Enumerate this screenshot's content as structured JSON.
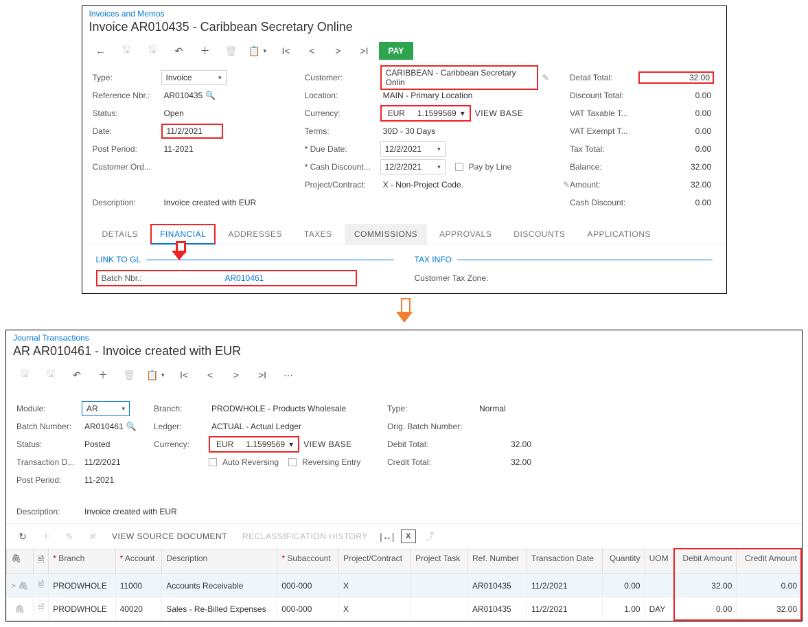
{
  "highlight_color": "#ee2222",
  "arrow_color": "#f08030",
  "accent_color": "#0078d4",
  "pay_button_bg": "#2ea44f",
  "invoice": {
    "breadcrumb": "Invoices and Memos",
    "title": "Invoice AR010435 - Caribbean Secretary Online",
    "pay_label": "PAY",
    "labels": {
      "type": "Type:",
      "reference_nbr": "Reference Nbr.:",
      "status": "Status:",
      "date": "Date:",
      "post_period": "Post Period:",
      "customer_ord": "Customer Ord...",
      "customer": "Customer:",
      "location": "Location:",
      "currency": "Currency:",
      "terms": "Terms:",
      "due_date": "Due Date:",
      "cash_discount": "Cash Discount...",
      "project": "Project/Contract:",
      "pay_by_line": "Pay by Line",
      "detail_total": "Detail Total:",
      "discount_total": "Discount Total:",
      "vat_taxable": "VAT Taxable T...",
      "vat_exempt": "VAT Exempt T...",
      "tax_total": "Tax Total:",
      "balance": "Balance:",
      "amount": "Amount:",
      "cash_discount_amt": "Cash Discount:",
      "description": "Description:"
    },
    "values": {
      "type": "Invoice",
      "reference_nbr": "AR010435",
      "status": "Open",
      "date": "11/2/2021",
      "post_period": "11-2021",
      "customer_ord": "",
      "customer": "CARIBBEAN - Caribbean Secretary Onlin",
      "location": "MAIN - Primary Location",
      "currency_code": "EUR",
      "currency_rate": "1.1599569",
      "view_base": "VIEW BASE",
      "terms": "30D - 30 Days",
      "due_date": "12/2/2021",
      "cash_discount_date": "12/2/2021",
      "project": "X - Non-Project Code.",
      "detail_total": "32.00",
      "discount_total": "0.00",
      "vat_taxable": "0.00",
      "vat_exempt": "0.00",
      "tax_total": "0.00",
      "balance": "32.00",
      "amount": "32.00",
      "cash_discount_amt": "0.00",
      "description": "Invoice created with EUR"
    },
    "tabs": {
      "details": "DETAILS",
      "financial": "FINANCIAL",
      "addresses": "ADDRESSES",
      "taxes": "TAXES",
      "commissions": "COMMISSIONS",
      "approvals": "APPROVALS",
      "discounts": "DISCOUNTS",
      "applications": "APPLICATIONS"
    },
    "financial": {
      "link_to_gl": "LINK TO GL",
      "batch_nbr_label": "Batch Nbr.:",
      "batch_nbr": "AR010461",
      "tax_info": "TAX INFO",
      "customer_tax_zone": "Customer Tax Zone:"
    }
  },
  "journal": {
    "breadcrumb": "Journal Transactions",
    "title": "AR AR010461 - Invoice created with EUR",
    "labels": {
      "module": "Module:",
      "batch_number": "Batch Number:",
      "status": "Status:",
      "transaction_date": "Transaction D...",
      "post_period": "Post Period:",
      "branch": "Branch:",
      "ledger": "Ledger:",
      "currency": "Currency:",
      "auto_reversing": "Auto Reversing",
      "reversing_entry": "Reversing Entry",
      "type": "Type:",
      "orig_batch": "Orig. Batch Number:",
      "debit_total": "Debit Total:",
      "credit_total": "Credit Total:",
      "description": "Description:"
    },
    "values": {
      "module": "AR",
      "batch_number": "AR010461",
      "status": "Posted",
      "transaction_date": "11/2/2021",
      "post_period": "11-2021",
      "branch": "PRODWHOLE - Products Wholesale",
      "ledger": "ACTUAL - Actual Ledger",
      "currency_code": "EUR",
      "currency_rate": "1.1599569",
      "view_base": "VIEW BASE",
      "type": "Normal",
      "orig_batch": "",
      "debit_total": "32.00",
      "credit_total": "32.00",
      "description": "Invoice created with EUR"
    },
    "gridbar": {
      "view_source": "VIEW SOURCE DOCUMENT",
      "reclass_history": "RECLASSIFICATION HISTORY"
    },
    "grid": {
      "headers": {
        "branch": "Branch",
        "account": "Account",
        "description": "Description",
        "subaccount": "Subaccount",
        "project": "Project/Contract",
        "task": "Project Task",
        "ref": "Ref. Number",
        "tdate": "Transaction Date",
        "qty": "Quantity",
        "uom": "UOM",
        "debit": "Debit Amount",
        "credit": "Credit Amount"
      },
      "rows": [
        {
          "branch": "PRODWHOLE",
          "account": "11000",
          "description": "Accounts Receivable",
          "subaccount": "000-000",
          "project": "X",
          "task": "",
          "ref": "AR010435",
          "tdate": "11/2/2021",
          "qty": "0.00",
          "uom": "",
          "debit": "32.00",
          "credit": "0.00"
        },
        {
          "branch": "PRODWHOLE",
          "account": "40020",
          "description": "Sales - Re-Billed Expenses",
          "subaccount": "000-000",
          "project": "X",
          "task": "",
          "ref": "AR010435",
          "tdate": "11/2/2021",
          "qty": "1.00",
          "uom": "DAY",
          "debit": "0.00",
          "credit": "32.00"
        }
      ]
    }
  }
}
